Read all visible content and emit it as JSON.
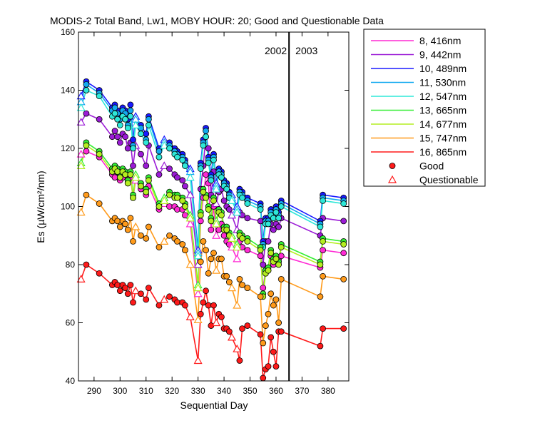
{
  "chart_data": {
    "type": "line",
    "title": "MODIS-2 Total Band,  Lw1, MOBY HOUR: 20;  Good and Questionable Data",
    "xlabel": "Sequential Day",
    "ylabel": "Es (µW/cm²/nm)",
    "xlim": [
      284,
      388
    ],
    "ylim": [
      40,
      160
    ],
    "xticks": [
      290,
      300,
      310,
      320,
      330,
      340,
      350,
      360,
      370,
      380
    ],
    "yticks": [
      40,
      60,
      80,
      100,
      120,
      140,
      160
    ],
    "grid": false,
    "legend_position": "right",
    "divider": {
      "x": 365,
      "left_label": "2002",
      "right_label": "2003"
    },
    "x": [
      285,
      287,
      292,
      297,
      298,
      299,
      300,
      301,
      302,
      303,
      304,
      305,
      306,
      308,
      310,
      311,
      315,
      317,
      319,
      321,
      322,
      324,
      325,
      327,
      330,
      331,
      332,
      333,
      334,
      335,
      336,
      337,
      338,
      339,
      340,
      341,
      342,
      343,
      345,
      346,
      347,
      349,
      354,
      355,
      356,
      357,
      358,
      359,
      360,
      361,
      362,
      377,
      378,
      386
    ],
    "series": [
      {
        "name": "8, 416nm",
        "color": "#ff2ad4",
        "values": [
          118,
          119,
          117,
          111,
          110,
          112,
          109,
          110,
          111,
          108,
          110,
          103,
          109,
          106,
          104,
          107,
          99,
          101,
          100,
          100,
          99,
          99,
          97,
          94,
          70,
          95,
          103,
          111,
          108,
          92,
          100,
          90,
          92,
          94,
          90,
          88,
          87,
          86,
          82,
          88,
          86,
          85,
          83,
          72,
          78,
          78,
          83,
          80,
          82,
          82,
          83,
          79,
          85,
          84
        ]
      },
      {
        "name": "9, 442nm",
        "color": "#9b1bd6",
        "values": [
          129,
          132,
          130,
          124,
          126,
          124,
          122,
          125,
          124,
          120,
          122,
          114,
          121,
          118,
          114,
          121,
          111,
          114,
          113,
          111,
          110,
          109,
          107,
          104,
          80,
          106,
          114,
          124,
          120,
          104,
          112,
          101,
          105,
          106,
          102,
          100,
          99,
          97,
          92,
          98,
          97,
          96,
          95,
          80,
          88,
          88,
          94,
          92,
          94,
          93,
          96,
          90,
          96,
          95
        ]
      },
      {
        "name": "10, 489nm",
        "color": "#1a1aff",
        "values": [
          138,
          143,
          140,
          134,
          135,
          133,
          131,
          134,
          133,
          130,
          135,
          123,
          131,
          128,
          125,
          131,
          120,
          123,
          122,
          120,
          119,
          118,
          116,
          113,
          85,
          115,
          123,
          127,
          117,
          111,
          118,
          108,
          113,
          112,
          109,
          108,
          105,
          104,
          100,
          106,
          105,
          103,
          101,
          88,
          96,
          96,
          99,
          98,
          100,
          98,
          102,
          95,
          104,
          103
        ]
      },
      {
        "name": "11, 530nm",
        "color": "#13a9f0",
        "values": [
          136,
          142,
          139,
          133,
          134,
          132,
          130,
          133,
          132,
          128,
          133,
          121,
          130,
          127,
          123,
          130,
          119,
          122,
          121,
          119,
          118,
          117,
          115,
          112,
          84,
          114,
          122,
          126,
          116,
          110,
          117,
          107,
          112,
          111,
          108,
          107,
          104,
          103,
          99,
          105,
          104,
          102,
          100,
          87,
          95,
          95,
          98,
          97,
          99,
          97,
          101,
          94,
          103,
          102
        ]
      },
      {
        "name": "12, 547nm",
        "color": "#2ee8d8",
        "values": [
          134,
          140,
          138,
          131,
          132,
          130,
          128,
          131,
          130,
          127,
          131,
          120,
          128,
          125,
          122,
          128,
          117,
          121,
          120,
          118,
          117,
          116,
          114,
          110,
          83,
          113,
          121,
          124,
          115,
          109,
          116,
          106,
          111,
          110,
          107,
          106,
          103,
          102,
          98,
          104,
          103,
          101,
          99,
          86,
          94,
          94,
          97,
          96,
          98,
          96,
          100,
          93,
          102,
          101
        ]
      },
      {
        "name": "13, 665nm",
        "color": "#33ee33",
        "values": [
          115,
          122,
          119,
          113,
          114,
          113,
          111,
          113,
          112,
          109,
          112,
          104,
          111,
          108,
          106,
          110,
          101,
          103,
          105,
          104,
          104,
          103,
          101,
          97,
          73,
          98,
          106,
          104,
          100,
          96,
          103,
          95,
          99,
          98,
          93,
          93,
          91,
          90,
          87,
          91,
          90,
          89,
          86,
          70,
          78,
          79,
          85,
          82,
          83,
          81,
          87,
          81,
          89,
          88
        ]
      },
      {
        "name": "14, 677nm",
        "color": "#b4ee20",
        "values": [
          114,
          121,
          118,
          112,
          113,
          112,
          110,
          112,
          111,
          108,
          111,
          103,
          110,
          107,
          105,
          109,
          100,
          102,
          104,
          103,
          103,
          102,
          100,
          96,
          72,
          97,
          105,
          103,
          99,
          95,
          102,
          94,
          98,
          97,
          92,
          92,
          90,
          89,
          86,
          90,
          89,
          88,
          85,
          69,
          77,
          78,
          84,
          81,
          82,
          80,
          86,
          80,
          88,
          87
        ]
      },
      {
        "name": "15, 747nm",
        "color": "#ff9a1a",
        "values": [
          98,
          104,
          101,
          95,
          96,
          95,
          93,
          95,
          94,
          92,
          96,
          88,
          93,
          90,
          89,
          93,
          86,
          88,
          90,
          89,
          88,
          87,
          85,
          80,
          61,
          81,
          88,
          85,
          77,
          82,
          84,
          78,
          82,
          82,
          76,
          76,
          74,
          72,
          66,
          75,
          73,
          72,
          69,
          53,
          59,
          63,
          70,
          66,
          68,
          60,
          75,
          69,
          76,
          75
        ]
      },
      {
        "name": "16, 865nm",
        "color": "#ff1a1a",
        "values": [
          75,
          80,
          77,
          73,
          74,
          73,
          71,
          73,
          72,
          70,
          73,
          67,
          71,
          70,
          68,
          72,
          66,
          68,
          69,
          68,
          67,
          67,
          66,
          62,
          47,
          63,
          67,
          71,
          66,
          59,
          66,
          60,
          63,
          62,
          58,
          58,
          57,
          55,
          51,
          47,
          58,
          59,
          56,
          41,
          44,
          45,
          55,
          50,
          45,
          57,
          57,
          52,
          58,
          58
        ]
      }
    ],
    "questionable_x": [
      285,
      306,
      317,
      327,
      330,
      337,
      343,
      345
    ],
    "legend_extra": [
      {
        "label": "Good",
        "marker": "circle"
      },
      {
        "label": "Questionable",
        "marker": "triangle"
      }
    ]
  }
}
